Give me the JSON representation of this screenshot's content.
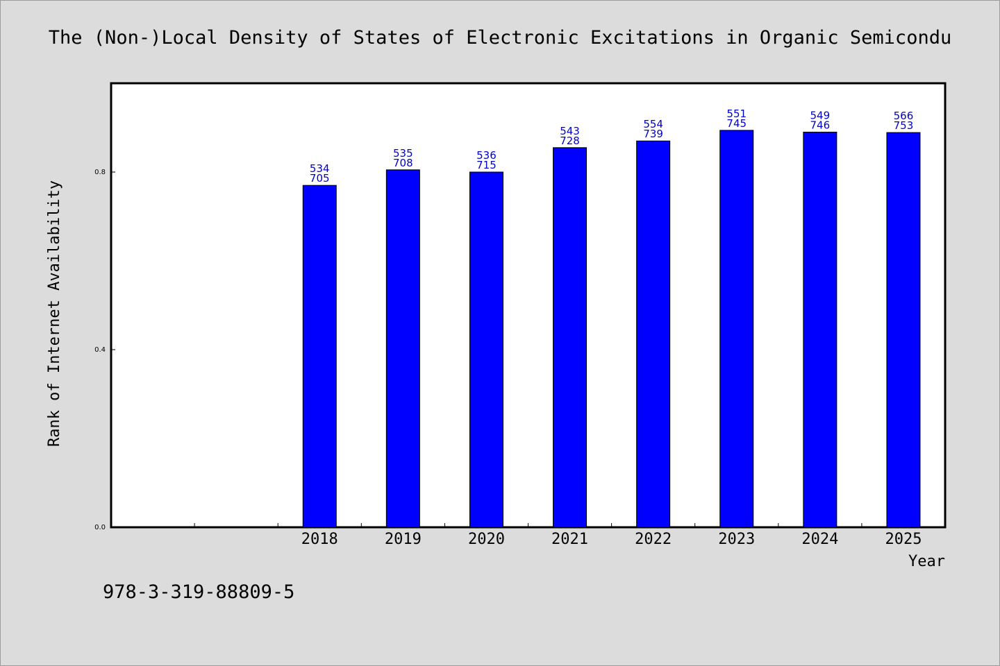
{
  "chart_data": {
    "type": "bar",
    "title": "The (Non-)Local Density of States of Electronic Excitations in Organic Semicondu",
    "xlabel": "Year",
    "ylabel": "Rank of Internet Availability",
    "categories": [
      "",
      "",
      "2018",
      "2019",
      "2020",
      "2021",
      "2022",
      "2023",
      "2024",
      "2025"
    ],
    "values": [
      null,
      null,
      0.77,
      0.805,
      0.8,
      0.855,
      0.87,
      0.894,
      0.89,
      0.889
    ],
    "annotations_top": [
      "",
      "",
      "534",
      "535",
      "536",
      "543",
      "554",
      "551",
      "549",
      "566"
    ],
    "annotations_bottom": [
      "",
      "",
      "705",
      "708",
      "715",
      "728",
      "739",
      "745",
      "746",
      "753"
    ],
    "ylim": [
      0,
      1.0
    ],
    "yticks": [
      0.0,
      0.4,
      0.8
    ],
    "ytick_labels": [
      "0.0",
      "0.4",
      "0.8"
    ],
    "grid": false,
    "legend": "none",
    "bar_color": "#0000ff",
    "label_color": "#0000cc",
    "background": "#dcdcdc",
    "plot_background": "#ffffff"
  },
  "footnote": "978-3-319-88809-5"
}
